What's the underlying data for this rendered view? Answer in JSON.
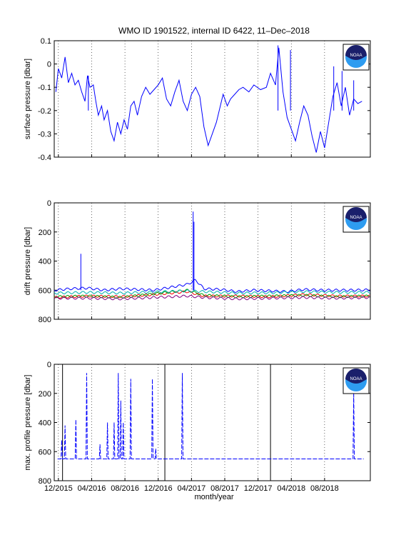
{
  "title": "WMO ID 1901522, internal ID 6422, 11–Dec–2018",
  "xlabel": "month/year",
  "x_ticks": [
    "12/2015",
    "04/2016",
    "08/2016",
    "12/2016",
    "04/2017",
    "08/2017",
    "12/2017",
    "04/2018",
    "08/2018"
  ],
  "logo_text": "NOAA",
  "colors": {
    "axes": "#000000",
    "main_series": "#0000ff",
    "noaa_navy": "#1a1f6b",
    "noaa_sky": "#2e9cf0"
  },
  "chart_data": [
    {
      "type": "line",
      "ylabel": "surface pressure [dbar]",
      "ylim": [
        -0.4,
        0.1
      ],
      "yticks": [
        "0.1",
        "0",
        "-0.1",
        "-0.2",
        "-0.3",
        "-0.4"
      ],
      "x_range_months": [
        0,
        38
      ],
      "series": [
        {
          "color": "#0000ff",
          "points": [
            [
              0.2,
              -0.12
            ],
            [
              0.5,
              -0.02
            ],
            [
              0.9,
              -0.06
            ],
            [
              1.3,
              0.03
            ],
            [
              1.7,
              -0.08
            ],
            [
              2.1,
              -0.04
            ],
            [
              2.5,
              -0.09
            ],
            [
              2.9,
              -0.07
            ],
            [
              3.3,
              -0.12
            ],
            [
              3.7,
              -0.16
            ],
            [
              4.0,
              -0.05
            ],
            [
              4.3,
              -0.1
            ],
            [
              4.7,
              -0.09
            ],
            [
              5.0,
              -0.16
            ],
            [
              5.3,
              -0.22
            ],
            [
              5.7,
              -0.18
            ],
            [
              6.0,
              -0.24
            ],
            [
              6.4,
              -0.2
            ],
            [
              6.8,
              -0.29
            ],
            [
              7.2,
              -0.33
            ],
            [
              7.6,
              -0.25
            ],
            [
              8.0,
              -0.3
            ],
            [
              8.4,
              -0.24
            ],
            [
              8.8,
              -0.28
            ],
            [
              9.2,
              -0.18
            ],
            [
              9.6,
              -0.16
            ],
            [
              10.0,
              -0.22
            ],
            [
              10.5,
              -0.14
            ],
            [
              11.0,
              -0.1
            ],
            [
              11.5,
              -0.13
            ],
            [
              12.0,
              -0.11
            ],
            [
              12.5,
              -0.09
            ],
            [
              13.0,
              -0.06
            ],
            [
              13.5,
              -0.15
            ],
            [
              14.0,
              -0.18
            ],
            [
              14.5,
              -0.12
            ],
            [
              15.0,
              -0.07
            ],
            [
              15.5,
              -0.16
            ],
            [
              16.0,
              -0.2
            ],
            [
              16.5,
              -0.13
            ],
            [
              17.0,
              -0.1
            ],
            [
              17.5,
              -0.14
            ],
            [
              18.0,
              -0.27
            ],
            [
              18.5,
              -0.35
            ],
            [
              19.0,
              -0.3
            ],
            [
              19.5,
              -0.25
            ],
            [
              20.3,
              -0.13
            ],
            [
              20.8,
              -0.18
            ],
            [
              21.2,
              -0.15
            ],
            [
              21.7,
              -0.13
            ],
            [
              22.2,
              -0.11
            ],
            [
              22.7,
              -0.1
            ],
            [
              23.4,
              -0.12
            ],
            [
              24.0,
              -0.09
            ],
            [
              24.8,
              -0.11
            ],
            [
              25.5,
              -0.1
            ],
            [
              26.0,
              -0.04
            ],
            [
              26.6,
              -0.09
            ],
            [
              27.0,
              0.07
            ],
            [
              27.5,
              -0.12
            ],
            [
              28.0,
              -0.23
            ],
            [
              28.5,
              -0.28
            ],
            [
              29.0,
              -0.33
            ],
            [
              29.5,
              -0.25
            ],
            [
              30.0,
              -0.18
            ],
            [
              30.5,
              -0.22
            ],
            [
              31.0,
              -0.31
            ],
            [
              31.5,
              -0.38
            ],
            [
              32.0,
              -0.29
            ],
            [
              32.5,
              -0.36
            ],
            [
              33.0,
              -0.25
            ],
            [
              33.5,
              -0.14
            ],
            [
              34.0,
              -0.08
            ],
            [
              34.5,
              -0.18
            ],
            [
              35.0,
              -0.1
            ],
            [
              35.5,
              -0.22
            ],
            [
              36.0,
              -0.15
            ],
            [
              36.5,
              -0.17
            ],
            [
              37.0,
              -0.16
            ]
          ]
        }
      ],
      "spikes": [
        [
          4.1,
          -0.05
        ],
        [
          26.9,
          0.08
        ],
        [
          28.4,
          0.06
        ],
        [
          33.6,
          -0.01
        ],
        [
          34.6,
          -0.03
        ],
        [
          36.0,
          -0.07
        ]
      ]
    },
    {
      "type": "line",
      "ylabel": "drift pressure [dbar]",
      "ylim": [
        0,
        800
      ],
      "yticks": [
        "0",
        "200",
        "400",
        "600",
        "800"
      ],
      "x_range_months": [
        0,
        38
      ],
      "series": [
        {
          "color": "#0000ff",
          "level_profile": [
            [
              0,
              600
            ],
            [
              2,
              590
            ],
            [
              4,
              585
            ],
            [
              6,
              600
            ],
            [
              8,
              590
            ],
            [
              10,
              595
            ],
            [
              12,
              600
            ],
            [
              14,
              580
            ],
            [
              16,
              560
            ],
            [
              17,
              530
            ],
            [
              18,
              590
            ],
            [
              20,
              595
            ],
            [
              22,
              610
            ],
            [
              24,
              600
            ],
            [
              26,
              605
            ],
            [
              28,
              610
            ],
            [
              30,
              595
            ],
            [
              32,
              600
            ],
            [
              34,
              600
            ],
            [
              36,
              600
            ],
            [
              38,
              598
            ]
          ]
        },
        {
          "color": "#ff0000",
          "level_profile": [
            [
              0,
              650
            ],
            [
              4,
              640
            ],
            [
              8,
              645
            ],
            [
              12,
              630
            ],
            [
              16,
              610
            ],
            [
              18,
              640
            ],
            [
              22,
              640
            ],
            [
              26,
              645
            ],
            [
              30,
              630
            ],
            [
              34,
              640
            ],
            [
              38,
              640
            ]
          ]
        },
        {
          "color": "#00a000",
          "level_profile": [
            [
              0,
              645
            ],
            [
              4,
              640
            ],
            [
              8,
              650
            ],
            [
              12,
              625
            ],
            [
              16,
              600
            ],
            [
              18,
              635
            ],
            [
              22,
              645
            ],
            [
              26,
              640
            ],
            [
              30,
              635
            ],
            [
              34,
              645
            ],
            [
              38,
              640
            ]
          ]
        },
        {
          "color": "#800080",
          "level_profile": [
            [
              0,
              655
            ],
            [
              4,
              655
            ],
            [
              8,
              660
            ],
            [
              12,
              650
            ],
            [
              16,
              640
            ],
            [
              18,
              650
            ],
            [
              22,
              660
            ],
            [
              26,
              655
            ],
            [
              30,
              650
            ],
            [
              34,
              655
            ],
            [
              38,
              650
            ]
          ]
        },
        {
          "color": "#00b0b0",
          "level_profile": [
            [
              0,
              620
            ],
            [
              4,
              615
            ],
            [
              8,
              620
            ],
            [
              12,
              612
            ],
            [
              16,
              605
            ],
            [
              18,
              610
            ],
            [
              22,
              620
            ],
            [
              26,
              618
            ],
            [
              30,
              610
            ],
            [
              34,
              615
            ],
            [
              38,
              615
            ]
          ]
        }
      ],
      "spikes": [
        [
          3.2,
          350
        ],
        [
          16.7,
          60
        ],
        [
          16.8,
          130
        ]
      ]
    },
    {
      "type": "line",
      "ylabel": "max. profile pressure [dbar]",
      "ylim": [
        0,
        800
      ],
      "yticks": [
        "0",
        "200",
        "400",
        "600",
        "800"
      ],
      "x_range_months": [
        0,
        38
      ],
      "vlines": [
        1.0,
        13.3,
        26.0
      ],
      "series": [
        {
          "color": "#0000ff",
          "baseline": 650,
          "spikes": [
            [
              0.9,
              520
            ],
            [
              1.3,
              420
            ],
            [
              2.6,
              380
            ],
            [
              3.9,
              60
            ],
            [
              5.5,
              550
            ],
            [
              6.4,
              400
            ],
            [
              7.2,
              400
            ],
            [
              7.7,
              60
            ],
            [
              8.0,
              250
            ],
            [
              8.3,
              400
            ],
            [
              9.2,
              100
            ],
            [
              11.8,
              100
            ],
            [
              12.2,
              580
            ],
            [
              15.4,
              60
            ],
            [
              36.0,
              190
            ]
          ]
        }
      ]
    }
  ]
}
